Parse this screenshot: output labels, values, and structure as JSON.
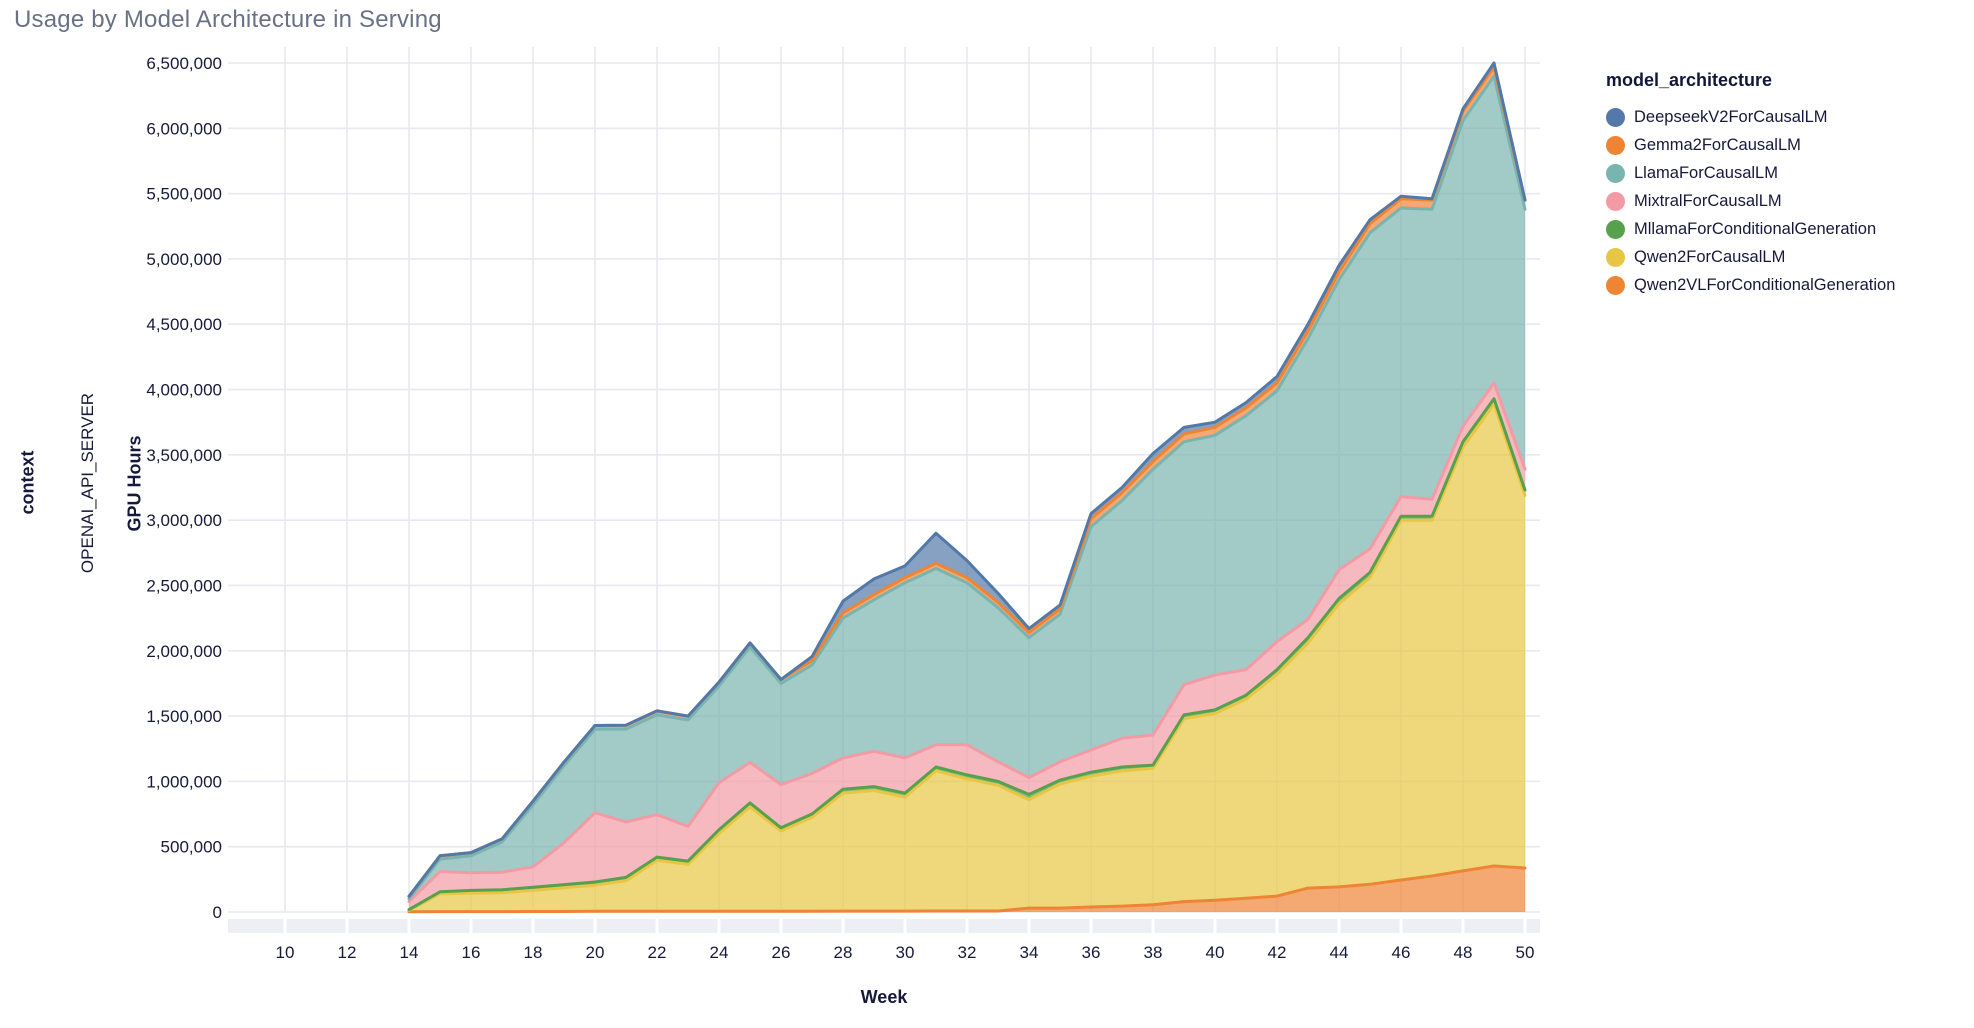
{
  "title": "Usage by Model Architecture in Serving",
  "facet": {
    "column_label": "context",
    "row_label": "OPENAI_API_SERVER"
  },
  "legend": {
    "title": "model_architecture",
    "items": [
      {
        "label": "DeepseekV2ForCausalLM",
        "color": "#5379a8"
      },
      {
        "label": "Gemma2ForCausalLM",
        "color": "#ee8534"
      },
      {
        "label": "LlamaForCausalLM",
        "color": "#7ab4af"
      },
      {
        "label": "MixtralForCausalLM",
        "color": "#f29ba4"
      },
      {
        "label": "MllamaForConditionalGeneration",
        "color": "#57a14e"
      },
      {
        "label": "Qwen2ForCausalLM",
        "color": "#e8c643"
      },
      {
        "label": "Qwen2VLForConditionalGeneration",
        "color": "#ee8534"
      }
    ]
  },
  "chart_data": {
    "type": "area",
    "stacked": true,
    "title": "Usage by Model Architecture in Serving",
    "xlabel": "Week",
    "ylabel": "GPU Hours",
    "legend_position": "right",
    "grid": true,
    "xlim": [
      10,
      50
    ],
    "ylim": [
      0,
      6500000
    ],
    "x_ticks": [
      10,
      12,
      14,
      16,
      18,
      20,
      22,
      24,
      26,
      28,
      30,
      32,
      34,
      36,
      38,
      40,
      42,
      44,
      46,
      48,
      50
    ],
    "y_ticks": [
      0,
      500000,
      1000000,
      1500000,
      2000000,
      2500000,
      3000000,
      3500000,
      4000000,
      4500000,
      5000000,
      5500000,
      6000000,
      6500000
    ],
    "x": [
      14,
      15,
      16,
      17,
      18,
      19,
      20,
      21,
      22,
      23,
      24,
      25,
      26,
      27,
      28,
      29,
      30,
      31,
      32,
      33,
      34,
      35,
      36,
      37,
      38,
      39,
      40,
      41,
      42,
      43,
      44,
      45,
      46,
      47,
      48,
      49,
      50
    ],
    "series": [
      {
        "name": "Qwen2VLForConditionalGeneration",
        "color": "#ee8534",
        "values": [
          2000,
          3000,
          3000,
          3000,
          4000,
          4000,
          5000,
          5000,
          5000,
          5000,
          5000,
          6000,
          6000,
          6000,
          7000,
          7000,
          7000,
          8000,
          8000,
          8000,
          30000,
          30000,
          38000,
          45000,
          55000,
          80000,
          90000,
          105000,
          122000,
          183000,
          192000,
          212000,
          245000,
          276000,
          315000,
          352000,
          337000
        ]
      },
      {
        "name": "Qwen2ForCausalLM",
        "color": "#e8c643",
        "values": [
          10000,
          137000,
          142000,
          145000,
          161000,
          181000,
          200000,
          235000,
          390000,
          360000,
          595000,
          799000,
          614000,
          719000,
          903000,
          923000,
          873000,
          1072000,
          1012000,
          962000,
          830000,
          950000,
          1002000,
          1035000,
          1045000,
          1400000,
          1430000,
          1525000,
          1698000,
          1877000,
          2168000,
          2348000,
          2755000,
          2724000,
          3245000,
          3538000,
          2853000
        ]
      },
      {
        "name": "MllamaForConditionalGeneration",
        "color": "#57a14e",
        "values": [
          6000,
          15000,
          20000,
          22000,
          25000,
          25000,
          25000,
          25000,
          25000,
          25000,
          30000,
          30000,
          25000,
          25000,
          30000,
          30000,
          30000,
          30000,
          30000,
          30000,
          40000,
          30000,
          30000,
          30000,
          25000,
          30000,
          27000,
          30000,
          35000,
          40000,
          40000,
          40000,
          30000,
          30000,
          40000,
          40000,
          40000
        ]
      },
      {
        "name": "MixtralForCausalLM",
        "color": "#f29ba4",
        "values": [
          62000,
          155000,
          135000,
          135000,
          155000,
          320000,
          530000,
          425000,
          325000,
          265000,
          360000,
          310000,
          330000,
          310000,
          240000,
          270000,
          270000,
          170000,
          230000,
          150000,
          130000,
          140000,
          170000,
          220000,
          230000,
          230000,
          268000,
          195000,
          215000,
          140000,
          220000,
          180000,
          150000,
          130000,
          120000,
          120000,
          160000
        ]
      },
      {
        "name": "LlamaForCausalLM",
        "color": "#7ab4af",
        "values": [
          20000,
          95000,
          130000,
          230000,
          475000,
          590000,
          640000,
          710000,
          765000,
          815000,
          740000,
          885000,
          775000,
          830000,
          1070000,
          1160000,
          1340000,
          1350000,
          1240000,
          1180000,
          1070000,
          1130000,
          1710000,
          1820000,
          2035000,
          1860000,
          1835000,
          1945000,
          1920000,
          2150000,
          2220000,
          2420000,
          2210000,
          2220000,
          2340000,
          2350000,
          1990000
        ]
      },
      {
        "name": "Gemma2ForCausalLM",
        "color": "#ee8534",
        "values": [
          20000,
          25000,
          25000,
          25000,
          28000,
          28000,
          28000,
          30000,
          30000,
          30000,
          30000,
          30000,
          30000,
          35000,
          40000,
          40000,
          40000,
          40000,
          40000,
          40000,
          40000,
          40000,
          60000,
          60000,
          60000,
          60000,
          60000,
          60000,
          60000,
          60000,
          60000,
          70000,
          70000,
          70000,
          70000,
          70000,
          70000
        ]
      },
      {
        "name": "DeepseekV2ForCausalLM",
        "color": "#5379a8",
        "values": [
          0,
          0,
          0,
          0,
          0,
          0,
          0,
          0,
          0,
          0,
          0,
          0,
          0,
          30000,
          90000,
          120000,
          90000,
          230000,
          130000,
          70000,
          30000,
          30000,
          40000,
          40000,
          60000,
          50000,
          40000,
          40000,
          50000,
          50000,
          50000,
          30000,
          20000,
          10000,
          20000,
          30000,
          0
        ]
      }
    ]
  },
  "style": {
    "grid_color": "#e7e8f0",
    "axis_band_color": "#edeff4",
    "tick_text_color": "#16193a",
    "title_color": "#6a7187",
    "fill_opacity": 0.7
  }
}
